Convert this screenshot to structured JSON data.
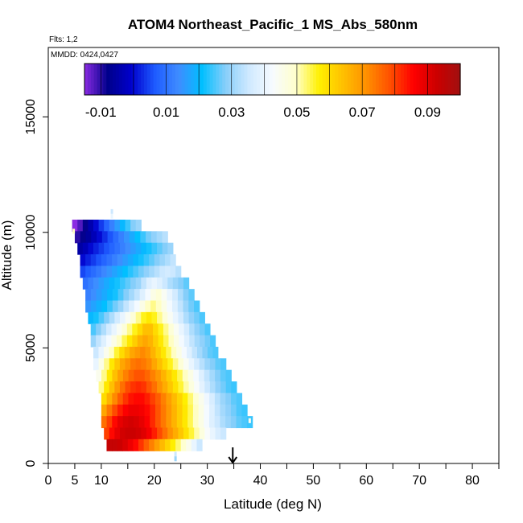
{
  "chart_data": {
    "type": "heatmap",
    "title": "ATOM4 Northeast_Pacific_1 MS_Abs_580nm",
    "flights_text": "Flts: 1,2",
    "mmdd_text": "MMDD: 0424,0427",
    "xlabel": "Latitude (deg N)",
    "ylabel": "Altitude (m)",
    "xlim": [
      0,
      85
    ],
    "ylim": [
      0,
      18000
    ],
    "xticks": [
      0,
      5,
      10,
      20,
      30,
      40,
      50,
      60,
      70,
      80
    ],
    "xtick_labels": [
      "0",
      "5",
      "10",
      "20",
      "30",
      "40",
      "50",
      "60",
      "70",
      "80"
    ],
    "yticks": [
      0,
      5000,
      10000,
      15000
    ],
    "ytick_labels": [
      "0",
      "5000",
      "10000",
      "15000"
    ],
    "colorbar": {
      "min": -0.015,
      "max": 0.1,
      "tick_values": [
        -0.01,
        0.01,
        0.03,
        0.05,
        0.07,
        0.09
      ],
      "tick_labels": [
        "-0.01",
        "0.01",
        "0.03",
        "0.05",
        "0.07",
        "0.09"
      ],
      "colors": [
        "#8a2be2",
        "#00008b",
        "#0000cd",
        "#1e5bff",
        "#3f8cff",
        "#00bfff",
        "#87cefa",
        "#cfe9ff",
        "#f7fbff",
        "#ffffcc",
        "#fff000",
        "#ffc000",
        "#ff9000",
        "#ff5000",
        "#ff0000",
        "#cc0000",
        "#a01010"
      ]
    },
    "marker_latitude": 34.8,
    "grid": false,
    "rows": [
      {
        "alt": 10300,
        "lat_start": 4.5,
        "lat_end": 17.5,
        "values": [
          -0.015,
          -0.012,
          -0.008,
          -0.004,
          0.0,
          0.004,
          0.008,
          0.012,
          0.016,
          0.02,
          0.024,
          0.028,
          0.03
        ]
      },
      {
        "alt": 9800,
        "lat_start": 5.0,
        "lat_end": 22.5,
        "values": [
          -0.01,
          -0.008,
          -0.006,
          -0.003,
          0.0,
          0.003,
          0.006,
          0.009,
          0.012,
          0.015,
          0.018,
          0.021,
          0.024,
          0.027,
          0.029,
          0.031,
          0.033
        ]
      },
      {
        "alt": 9300,
        "lat_start": 5.5,
        "lat_end": 23.5,
        "values": [
          -0.005,
          -0.003,
          0.0,
          0.002,
          0.004,
          0.006,
          0.008,
          0.01,
          0.012,
          0.014,
          0.016,
          0.018,
          0.02,
          0.022,
          0.024,
          0.026,
          0.028,
          0.03
        ]
      },
      {
        "alt": 8800,
        "lat_start": 6.0,
        "lat_end": 24.0,
        "values": [
          0.0,
          0.002,
          0.004,
          0.006,
          0.008,
          0.01,
          0.012,
          0.014,
          0.016,
          0.018,
          0.02,
          0.022,
          0.024,
          0.026,
          0.028,
          0.03,
          0.032,
          0.034
        ]
      },
      {
        "alt": 8300,
        "lat_start": 6.0,
        "lat_end": 25.0,
        "values": [
          0.005,
          0.007,
          0.009,
          0.011,
          0.013,
          0.015,
          0.017,
          0.019,
          0.021,
          0.023,
          0.025,
          0.027,
          0.029,
          0.031,
          0.033,
          0.035,
          0.036,
          0.035,
          0.033
        ]
      },
      {
        "alt": 7800,
        "lat_start": 6.5,
        "lat_end": 26.5,
        "values": [
          0.01,
          0.012,
          0.014,
          0.016,
          0.018,
          0.02,
          0.022,
          0.024,
          0.026,
          0.028,
          0.03,
          0.034,
          0.038,
          0.04,
          0.038,
          0.035,
          0.032,
          0.03,
          0.028,
          0.026
        ]
      },
      {
        "alt": 7300,
        "lat_start": 7.0,
        "lat_end": 27.5,
        "values": [
          0.012,
          0.014,
          0.016,
          0.018,
          0.02,
          0.022,
          0.025,
          0.028,
          0.031,
          0.034,
          0.038,
          0.042,
          0.046,
          0.048,
          0.044,
          0.04,
          0.036,
          0.032,
          0.028,
          0.026
        ]
      },
      {
        "alt": 6800,
        "lat_start": 7.0,
        "lat_end": 28.5,
        "values": [
          0.015,
          0.017,
          0.019,
          0.021,
          0.024,
          0.027,
          0.03,
          0.034,
          0.038,
          0.042,
          0.046,
          0.05,
          0.052,
          0.05,
          0.046,
          0.042,
          0.038,
          0.034,
          0.03,
          0.027,
          0.025
        ]
      },
      {
        "alt": 6300,
        "lat_start": 7.5,
        "lat_end": 29.5,
        "values": [
          0.02,
          0.022,
          0.025,
          0.028,
          0.032,
          0.036,
          0.04,
          0.044,
          0.048,
          0.052,
          0.056,
          0.058,
          0.056,
          0.052,
          0.048,
          0.044,
          0.04,
          0.036,
          0.032,
          0.029,
          0.027,
          0.025
        ]
      },
      {
        "alt": 5800,
        "lat_start": 8.0,
        "lat_end": 30.5,
        "values": [
          0.025,
          0.028,
          0.032,
          0.036,
          0.04,
          0.044,
          0.048,
          0.052,
          0.056,
          0.06,
          0.064,
          0.064,
          0.06,
          0.056,
          0.052,
          0.048,
          0.044,
          0.04,
          0.036,
          0.032,
          0.029,
          0.027,
          0.025
        ]
      },
      {
        "alt": 5300,
        "lat_start": 8.0,
        "lat_end": 31.5,
        "values": [
          0.03,
          0.034,
          0.038,
          0.042,
          0.046,
          0.05,
          0.054,
          0.058,
          0.062,
          0.066,
          0.068,
          0.066,
          0.062,
          0.058,
          0.054,
          0.05,
          0.046,
          0.042,
          0.038,
          0.034,
          0.031,
          0.029,
          0.027,
          0.025
        ]
      },
      {
        "alt": 4800,
        "lat_start": 8.5,
        "lat_end": 32.0,
        "values": [
          0.035,
          0.04,
          0.045,
          0.05,
          0.055,
          0.06,
          0.064,
          0.068,
          0.07,
          0.072,
          0.07,
          0.066,
          0.062,
          0.058,
          0.054,
          0.05,
          0.046,
          0.042,
          0.038,
          0.034,
          0.031,
          0.028,
          0.026,
          0.025
        ]
      },
      {
        "alt": 4300,
        "lat_start": 8.5,
        "lat_end": 33.5,
        "values": [
          0.04,
          0.046,
          0.052,
          0.058,
          0.063,
          0.068,
          0.071,
          0.074,
          0.075,
          0.074,
          0.072,
          0.068,
          0.064,
          0.06,
          0.056,
          0.052,
          0.048,
          0.044,
          0.04,
          0.036,
          0.033,
          0.03,
          0.028,
          0.026,
          0.025
        ]
      },
      {
        "alt": 3800,
        "lat_start": 9.0,
        "lat_end": 34.5,
        "values": [
          0.045,
          0.052,
          0.058,
          0.064,
          0.069,
          0.073,
          0.076,
          0.078,
          0.078,
          0.076,
          0.073,
          0.07,
          0.066,
          0.062,
          0.058,
          0.054,
          0.05,
          0.046,
          0.042,
          0.038,
          0.034,
          0.031,
          0.028,
          0.026,
          0.025
        ]
      },
      {
        "alt": 3300,
        "lat_start": 9.5,
        "lat_end": 35.5,
        "values": [
          0.052,
          0.058,
          0.064,
          0.07,
          0.075,
          0.079,
          0.081,
          0.082,
          0.081,
          0.078,
          0.075,
          0.071,
          0.067,
          0.063,
          0.059,
          0.055,
          0.051,
          0.047,
          0.043,
          0.039,
          0.035,
          0.032,
          0.029,
          0.027,
          0.025,
          0.024
        ]
      },
      {
        "alt": 2800,
        "lat_start": 10.0,
        "lat_end": 36.5,
        "values": [
          0.06,
          0.066,
          0.072,
          0.077,
          0.081,
          0.084,
          0.085,
          0.085,
          0.083,
          0.08,
          0.077,
          0.073,
          0.069,
          0.065,
          0.061,
          0.057,
          0.053,
          0.049,
          0.045,
          0.041,
          0.037,
          0.033,
          0.03,
          0.028,
          0.026,
          0.025
        ]
      },
      {
        "alt": 2300,
        "lat_start": 10.0,
        "lat_end": 37.5,
        "values": [
          0.068,
          0.074,
          0.079,
          0.083,
          0.086,
          0.088,
          0.088,
          0.087,
          0.085,
          0.082,
          0.078,
          0.074,
          0.07,
          0.066,
          0.062,
          0.058,
          0.054,
          0.05,
          0.046,
          0.042,
          0.038,
          0.034,
          0.031,
          0.029,
          0.027,
          0.025,
          0.024
        ]
      },
      {
        "alt": 1800,
        "lat_start": 10.0,
        "lat_end": 38.5,
        "values": [
          0.075,
          0.08,
          0.085,
          0.089,
          0.091,
          0.092,
          0.091,
          0.089,
          0.086,
          0.082,
          0.078,
          0.074,
          0.07,
          0.066,
          0.062,
          0.058,
          0.054,
          0.05,
          0.046,
          0.042,
          0.038,
          0.035,
          0.032,
          0.03,
          0.028,
          0.026,
          0.025,
          0.024
        ]
      },
      {
        "alt": 1300,
        "lat_start": 10.5,
        "lat_end": 33.5,
        "values": [
          0.08,
          0.085,
          0.089,
          0.092,
          0.093,
          0.093,
          0.092,
          0.09,
          0.087,
          0.083,
          0.079,
          0.075,
          0.071,
          0.067,
          0.063,
          0.059,
          0.055,
          0.051,
          0.047,
          0.043,
          0.04,
          0.037,
          0.035
        ]
      },
      {
        "alt": 800,
        "lat_start": 11.0,
        "lat_end": 29.0,
        "values": [
          0.094,
          0.094,
          0.093,
          0.091,
          0.088,
          0.085,
          0.081,
          0.077,
          0.073,
          0.069,
          0.065,
          0.061,
          0.057,
          0.053,
          0.049,
          0.045,
          0.04,
          0.035
        ]
      }
    ],
    "extra_points": [
      {
        "lat": 12.0,
        "alt": 10900,
        "value": 0.035
      },
      {
        "lat": 12.0,
        "alt": 10700,
        "value": 0.04
      },
      {
        "lat": 24.0,
        "alt": 400,
        "value": 0.035
      },
      {
        "lat": 24.0,
        "alt": 200,
        "value": 0.03
      },
      {
        "lat": 4.8,
        "alt": 10050,
        "value": 0.05
      },
      {
        "lat": 38.0,
        "alt": 1850,
        "value": 0.045
      }
    ]
  }
}
